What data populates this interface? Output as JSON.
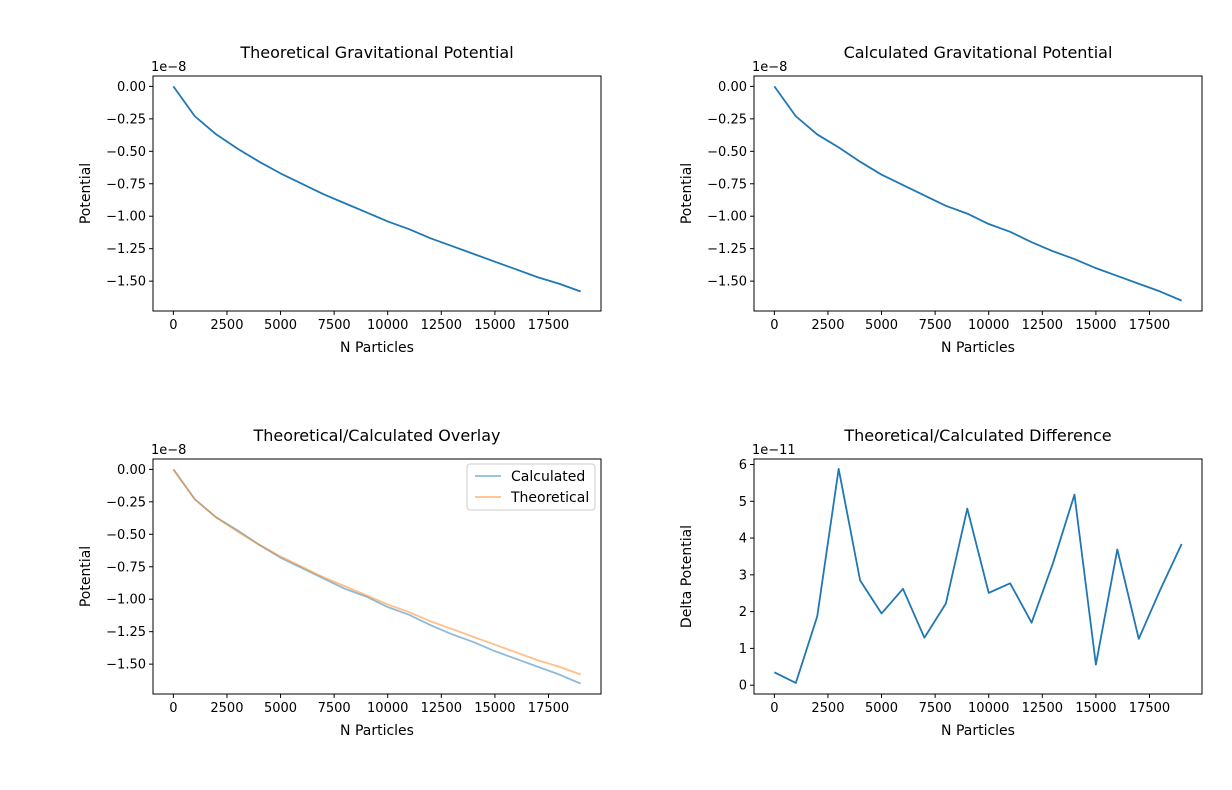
{
  "chart_data": [
    {
      "type": "line",
      "title": "Theoretical Gravitational Potential",
      "xlabel": "N Particles",
      "ylabel": "Potential",
      "offset_text": "1e−8",
      "xticks": [
        0,
        2500,
        5000,
        7500,
        10000,
        12500,
        15000,
        17500
      ],
      "xtick_labels": [
        "0",
        "2500",
        "5000",
        "7500",
        "10000",
        "12500",
        "15000",
        "17500"
      ],
      "yticks": [
        0.0,
        -0.25,
        -0.5,
        -0.75,
        -1.0,
        -1.25,
        -1.5
      ],
      "ytick_labels": [
        "0.00",
        "−0.25",
        "−0.50",
        "−0.75",
        "−1.00",
        "−1.25",
        "−1.50"
      ],
      "xlim": [
        -950,
        19950
      ],
      "ylim": [
        -1.73,
        0.08
      ],
      "legend": false,
      "series": [
        {
          "color": "#1f77b4",
          "opacity": 1,
          "x": [
            0,
            1000,
            2000,
            3000,
            4000,
            5000,
            6000,
            7000,
            8000,
            9000,
            10000,
            11000,
            12000,
            13000,
            14000,
            15000,
            16000,
            17000,
            18000,
            19000
          ],
          "y": [
            0.0,
            -0.23,
            -0.37,
            -0.48,
            -0.58,
            -0.67,
            -0.75,
            -0.83,
            -0.9,
            -0.97,
            -1.04,
            -1.1,
            -1.17,
            -1.23,
            -1.29,
            -1.35,
            -1.41,
            -1.47,
            -1.52,
            -1.58
          ]
        }
      ]
    },
    {
      "type": "line",
      "title": "Calculated Gravitational Potential",
      "xlabel": "N Particles",
      "ylabel": "Potential",
      "offset_text": "1e−8",
      "xticks": [
        0,
        2500,
        5000,
        7500,
        10000,
        12500,
        15000,
        17500
      ],
      "xtick_labels": [
        "0",
        "2500",
        "5000",
        "7500",
        "10000",
        "12500",
        "15000",
        "17500"
      ],
      "yticks": [
        0.0,
        -0.25,
        -0.5,
        -0.75,
        -1.0,
        -1.25,
        -1.5
      ],
      "ytick_labels": [
        "0.00",
        "−0.25",
        "−0.50",
        "−0.75",
        "−1.00",
        "−1.25",
        "−1.50"
      ],
      "xlim": [
        -950,
        19950
      ],
      "ylim": [
        -1.73,
        0.08
      ],
      "legend": false,
      "series": [
        {
          "color": "#1f77b4",
          "opacity": 1,
          "x": [
            0,
            1000,
            2000,
            3000,
            4000,
            5000,
            6000,
            7000,
            8000,
            9000,
            10000,
            11000,
            12000,
            13000,
            14000,
            15000,
            16000,
            17000,
            18000,
            19000
          ],
          "y": [
            0.0,
            -0.23,
            -0.37,
            -0.47,
            -0.58,
            -0.68,
            -0.76,
            -0.84,
            -0.92,
            -0.98,
            -1.06,
            -1.12,
            -1.2,
            -1.27,
            -1.33,
            -1.4,
            -1.46,
            -1.52,
            -1.58,
            -1.65
          ]
        }
      ]
    },
    {
      "type": "line",
      "title": "Theoretical/Calculated Overlay",
      "xlabel": "N Particles",
      "ylabel": "Potential",
      "offset_text": "1e−8",
      "xticks": [
        0,
        2500,
        5000,
        7500,
        10000,
        12500,
        15000,
        17500
      ],
      "xtick_labels": [
        "0",
        "2500",
        "5000",
        "7500",
        "10000",
        "12500",
        "15000",
        "17500"
      ],
      "yticks": [
        0.0,
        -0.25,
        -0.5,
        -0.75,
        -1.0,
        -1.25,
        -1.5
      ],
      "ytick_labels": [
        "0.00",
        "−0.25",
        "−0.50",
        "−0.75",
        "−1.00",
        "−1.25",
        "−1.50"
      ],
      "xlim": [
        -950,
        19950
      ],
      "ylim": [
        -1.73,
        0.08
      ],
      "legend": true,
      "legend_position": "upper right",
      "series": [
        {
          "name": "Calculated",
          "color": "#1f77b4",
          "opacity": 0.5,
          "x": [
            0,
            1000,
            2000,
            3000,
            4000,
            5000,
            6000,
            7000,
            8000,
            9000,
            10000,
            11000,
            12000,
            13000,
            14000,
            15000,
            16000,
            17000,
            18000,
            19000
          ],
          "y": [
            0.0,
            -0.23,
            -0.37,
            -0.47,
            -0.58,
            -0.68,
            -0.76,
            -0.84,
            -0.92,
            -0.98,
            -1.06,
            -1.12,
            -1.2,
            -1.27,
            -1.33,
            -1.4,
            -1.46,
            -1.52,
            -1.58,
            -1.65
          ]
        },
        {
          "name": "Theoretical",
          "color": "#ff7f0e",
          "opacity": 0.5,
          "x": [
            0,
            1000,
            2000,
            3000,
            4000,
            5000,
            6000,
            7000,
            8000,
            9000,
            10000,
            11000,
            12000,
            13000,
            14000,
            15000,
            16000,
            17000,
            18000,
            19000
          ],
          "y": [
            0.0,
            -0.23,
            -0.37,
            -0.48,
            -0.58,
            -0.67,
            -0.75,
            -0.83,
            -0.9,
            -0.97,
            -1.04,
            -1.1,
            -1.17,
            -1.23,
            -1.29,
            -1.35,
            -1.41,
            -1.47,
            -1.52,
            -1.58
          ]
        }
      ]
    },
    {
      "type": "line",
      "title": "Theoretical/Calculated Difference",
      "xlabel": "N Particles",
      "ylabel": "Delta Potential",
      "offset_text": "1e−11",
      "xticks": [
        0,
        2500,
        5000,
        7500,
        10000,
        12500,
        15000,
        17500
      ],
      "xtick_labels": [
        "0",
        "2500",
        "5000",
        "7500",
        "10000",
        "12500",
        "15000",
        "17500"
      ],
      "yticks": [
        0,
        1,
        2,
        3,
        4,
        5,
        6
      ],
      "ytick_labels": [
        "0",
        "1",
        "2",
        "3",
        "4",
        "5",
        "6"
      ],
      "xlim": [
        -950,
        19950
      ],
      "ylim": [
        -0.24,
        6.15
      ],
      "legend": false,
      "series": [
        {
          "color": "#1f77b4",
          "opacity": 1,
          "x": [
            0,
            1000,
            2000,
            3000,
            4000,
            5000,
            6000,
            7000,
            8000,
            9000,
            10000,
            11000,
            12000,
            13000,
            14000,
            15000,
            16000,
            17000,
            18000,
            19000
          ],
          "y": [
            0.35,
            0.06,
            1.87,
            5.88,
            2.85,
            1.95,
            2.62,
            1.29,
            2.22,
            4.8,
            2.51,
            2.77,
            1.7,
            3.32,
            5.18,
            0.56,
            3.69,
            1.26,
            2.59,
            3.84
          ]
        }
      ]
    }
  ]
}
